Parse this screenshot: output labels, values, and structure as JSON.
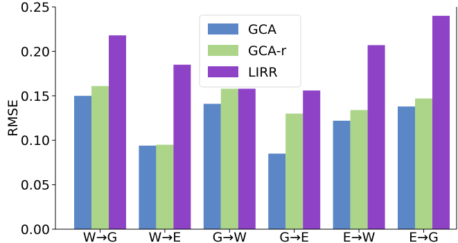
{
  "chart_data": {
    "type": "bar",
    "categories": [
      "W→G",
      "W→E",
      "G→W",
      "G→E",
      "E→W",
      "E→G"
    ],
    "series": [
      {
        "name": "GCA",
        "color": "#5b87c7",
        "values": [
          0.15,
          0.094,
          0.141,
          0.085,
          0.122,
          0.138
        ]
      },
      {
        "name": "GCA-r",
        "color": "#acd58a",
        "values": [
          0.161,
          0.095,
          0.158,
          0.13,
          0.134,
          0.147
        ]
      },
      {
        "name": "LIRR",
        "color": "#8e43c7",
        "values": [
          0.218,
          0.185,
          0.158,
          0.156,
          0.207,
          0.24
        ]
      }
    ],
    "yticks": [
      "0.00",
      "0.05",
      "0.10",
      "0.15",
      "0.20",
      "0.25"
    ],
    "ylabel": "RMSE",
    "ylim": [
      0,
      0.25
    ],
    "grid": false,
    "legend": "top-center"
  }
}
